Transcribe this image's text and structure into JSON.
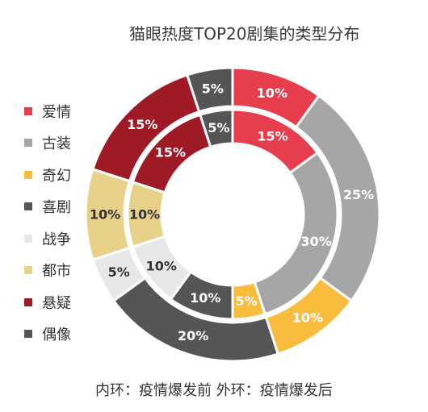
{
  "chart_data": {
    "type": "donut",
    "title": "猫眼热度TOP20剧集的类型分布",
    "categories": [
      "爱情",
      "古装",
      "奇幻",
      "喜剧",
      "战争",
      "都市",
      "悬疑",
      "偶像"
    ],
    "colors": [
      "#e63e4d",
      "#a6a6a6",
      "#f9bd3d",
      "#555555",
      "#e8e8e8",
      "#e8d28a",
      "#9e1b26",
      "#555555"
    ],
    "label_colors": [
      "#ffffff",
      "#ffffff",
      "#ffffff",
      "#ffffff",
      "#333333",
      "#333333",
      "#ffffff",
      "#ffffff"
    ],
    "series": [
      {
        "ring": "inner",
        "values": [
          15,
          30,
          5,
          10,
          10,
          10,
          15,
          5
        ],
        "labels": [
          "15%",
          "30%",
          "5%",
          "10%",
          "10%",
          "10%",
          "15%",
          "5%"
        ]
      },
      {
        "ring": "outer",
        "values": [
          10,
          25,
          10,
          20,
          5,
          10,
          15,
          5
        ],
        "labels": [
          "10%",
          "25%",
          "10%",
          "20%",
          "5%",
          "10%",
          "15%",
          "5%"
        ]
      }
    ],
    "footer": "内环：疫情爆发前  外环：疫情爆发后"
  }
}
